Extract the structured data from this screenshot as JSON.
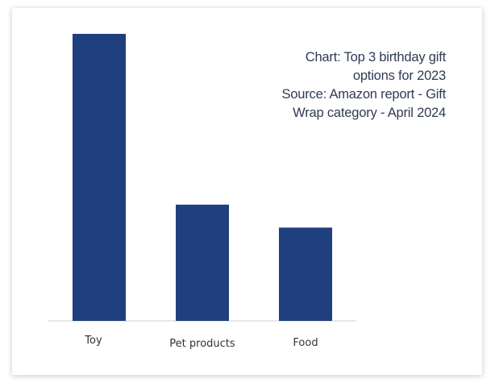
{
  "chart_data": {
    "type": "bar",
    "categories": [
      "Toy",
      "Pet products",
      "Food"
    ],
    "values": [
      100,
      40.5,
      32.5
    ],
    "title_lines": [
      "Chart: Top 3 birthday gift",
      "options for 2023",
      "Source: Amazon report - Gift",
      "Wrap category - April 2024"
    ],
    "ylim": [
      0,
      100
    ],
    "grid": false,
    "legend": "none",
    "bar_color": "#1f3f7f",
    "baseline_color": "#d9d9d9"
  }
}
